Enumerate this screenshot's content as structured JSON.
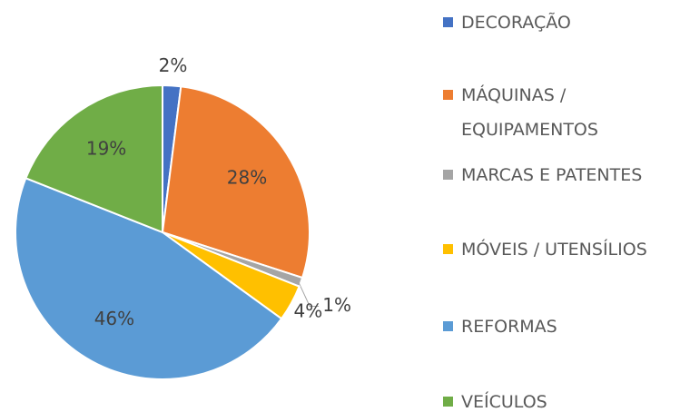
{
  "chart_data": {
    "type": "pie",
    "categories": [
      "DECORAÇÃO",
      "MÁQUINAS / EQUIPAMENTOS",
      "MARCAS E PATENTES",
      "MÓVEIS / UTENSÍLIOS",
      "REFORMAS",
      "VEÍCULOS"
    ],
    "values": [
      2,
      28,
      1,
      4,
      46,
      19
    ],
    "value_labels": [
      "2%",
      "28%",
      "1%",
      "4%",
      "46%",
      "19%"
    ],
    "colors": [
      "#4472c4",
      "#ed7d31",
      "#a5a5a5",
      "#ffc000",
      "#5b9bd5",
      "#70ad47"
    ],
    "legend": "right"
  }
}
